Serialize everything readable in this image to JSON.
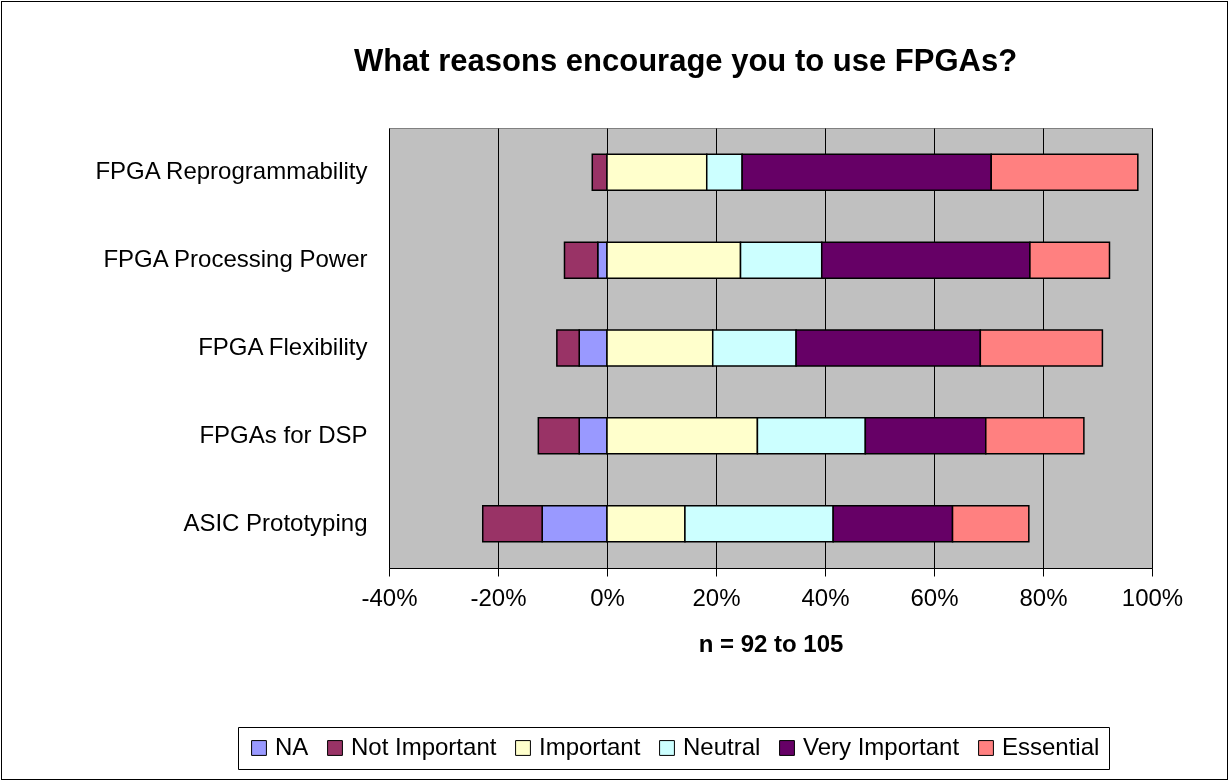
{
  "chart_data": {
    "type": "bar",
    "orientation": "horizontal",
    "stacked": true,
    "title": "What reasons encourage you to use FPGAs?",
    "xlabel": "n = 92 to 105",
    "categories": [
      "FPGA Reprogrammability",
      "FPGA Processing Power",
      "FPGA Flexibility",
      "FPGAs for DSP",
      "ASIC Prototyping"
    ],
    "series": [
      {
        "name": "NA",
        "color": "#9999ff",
        "values": [
          0,
          -1.7,
          -5.1,
          -5.1,
          -11.9
        ]
      },
      {
        "name": "Not Important",
        "color": "#993366",
        "values": [
          -2.7,
          -6.1,
          -4.1,
          -7.5,
          -10.9
        ]
      },
      {
        "name": "Important",
        "color": "#ffffcc",
        "values": [
          18.3,
          24.5,
          19.4,
          27.6,
          14.3
        ]
      },
      {
        "name": "Neutral",
        "color": "#ccffff",
        "values": [
          6.5,
          14.9,
          15.3,
          19.8,
          27.2
        ]
      },
      {
        "name": "Very Important",
        "color": "#660066",
        "values": [
          45.7,
          38.2,
          33.8,
          22.1,
          21.9
        ]
      },
      {
        "name": "Essential",
        "color": "#ff8080",
        "values": [
          26.9,
          14.6,
          22.4,
          18.0,
          14.0
        ]
      }
    ],
    "xlim": [
      -40,
      100
    ],
    "xticks": [
      {
        "value": -40,
        "label": "-40%"
      },
      {
        "value": -20,
        "label": "-20%"
      },
      {
        "value": 0,
        "label": "0%"
      },
      {
        "value": 20,
        "label": "20%"
      },
      {
        "value": 40,
        "label": "40%"
      },
      {
        "value": 60,
        "label": "60%"
      },
      {
        "value": 80,
        "label": "80%"
      },
      {
        "value": 100,
        "label": "100%"
      }
    ],
    "grid": "x",
    "legend": "bottom"
  }
}
